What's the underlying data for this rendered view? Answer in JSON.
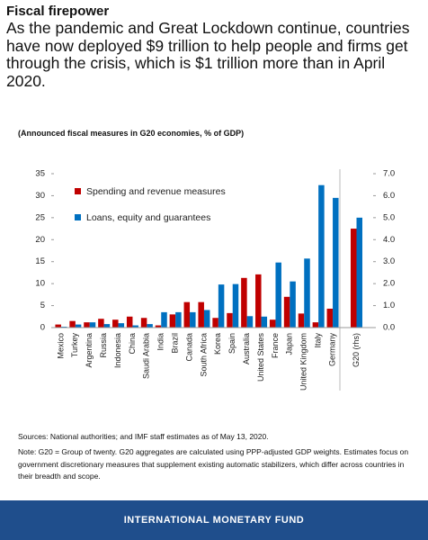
{
  "chart_data": {
    "type": "bar",
    "title": "Fiscal firepower",
    "subtitle": "As the pandemic and Great Lockdown continue, countries have now deployed $9 trillion to help people and firms get through the crisis, which is $1 trillion more than in April 2020.",
    "caption": "(Announced fiscal measures in G20 economies, % of GDP)",
    "categories": [
      "Mexico",
      "Turkey",
      "Argentina",
      "Russia",
      "Indonesia",
      "China",
      "Saudi Arabia",
      "India",
      "Brazil",
      "Canada",
      "South Africa",
      "Korea",
      "Spain",
      "Australia",
      "United States",
      "France",
      "Japan",
      "United Kingdom",
      "Italy",
      "Germany",
      "G20 (rhs)"
    ],
    "series": [
      {
        "name": "Spending and revenue measures",
        "color": "#c00000",
        "values": [
          0.7,
          1.5,
          1.2,
          2.0,
          1.8,
          2.5,
          2.2,
          0.5,
          3.0,
          5.8,
          5.8,
          2.2,
          3.3,
          11.3,
          12.1,
          1.8,
          7.0,
          3.2,
          1.2,
          4.3,
          null
        ]
      },
      {
        "name": "Loans, equity and guarantees",
        "color": "#0070c0",
        "values": [
          0.2,
          0.7,
          1.2,
          0.8,
          1.0,
          0.5,
          0.8,
          3.5,
          3.5,
          3.5,
          4.0,
          9.8,
          9.9,
          2.6,
          2.5,
          14.8,
          10.5,
          15.7,
          32.4,
          29.5,
          null
        ]
      },
      {
        "axis": "y2",
        "color": "#c00000",
        "values": [
          null,
          null,
          null,
          null,
          null,
          null,
          null,
          null,
          null,
          null,
          null,
          null,
          null,
          null,
          null,
          null,
          null,
          null,
          null,
          null,
          4.5
        ]
      },
      {
        "axis": "y2",
        "color": "#0070c0",
        "values": [
          null,
          null,
          null,
          null,
          null,
          null,
          null,
          null,
          null,
          null,
          null,
          null,
          null,
          null,
          null,
          null,
          null,
          null,
          null,
          null,
          5.0
        ]
      }
    ],
    "ylim": [
      0,
      35
    ],
    "yticks": [
      0,
      5,
      10,
      15,
      20,
      25,
      30,
      35
    ],
    "y2lim": [
      0,
      7
    ],
    "y2ticks": [
      {
        "value": 0,
        "label": "0.0"
      },
      {
        "value": 1,
        "label": "1.0"
      },
      {
        "value": 2,
        "label": "2.0"
      },
      {
        "value": 3,
        "label": "3.0"
      },
      {
        "value": 4,
        "label": "4.0"
      },
      {
        "value": 5,
        "label": "5.0"
      },
      {
        "value": 6,
        "label": "6.0"
      },
      {
        "value": 7,
        "label": "7.0"
      }
    ],
    "legend": "upper left",
    "source": "Sources: National authorities; and IMF staff estimates as of May 13, 2020.",
    "note": "Note: G20 = Group of twenty. G20 aggregates are calculated using PPP-adjusted GDP weights. Estimates focus on government discretionary measures that supplement existing automatic stabilizers, which differ across countries in their breadth and scope.",
    "footer": "INTERNATIONAL MONETARY FUND"
  }
}
